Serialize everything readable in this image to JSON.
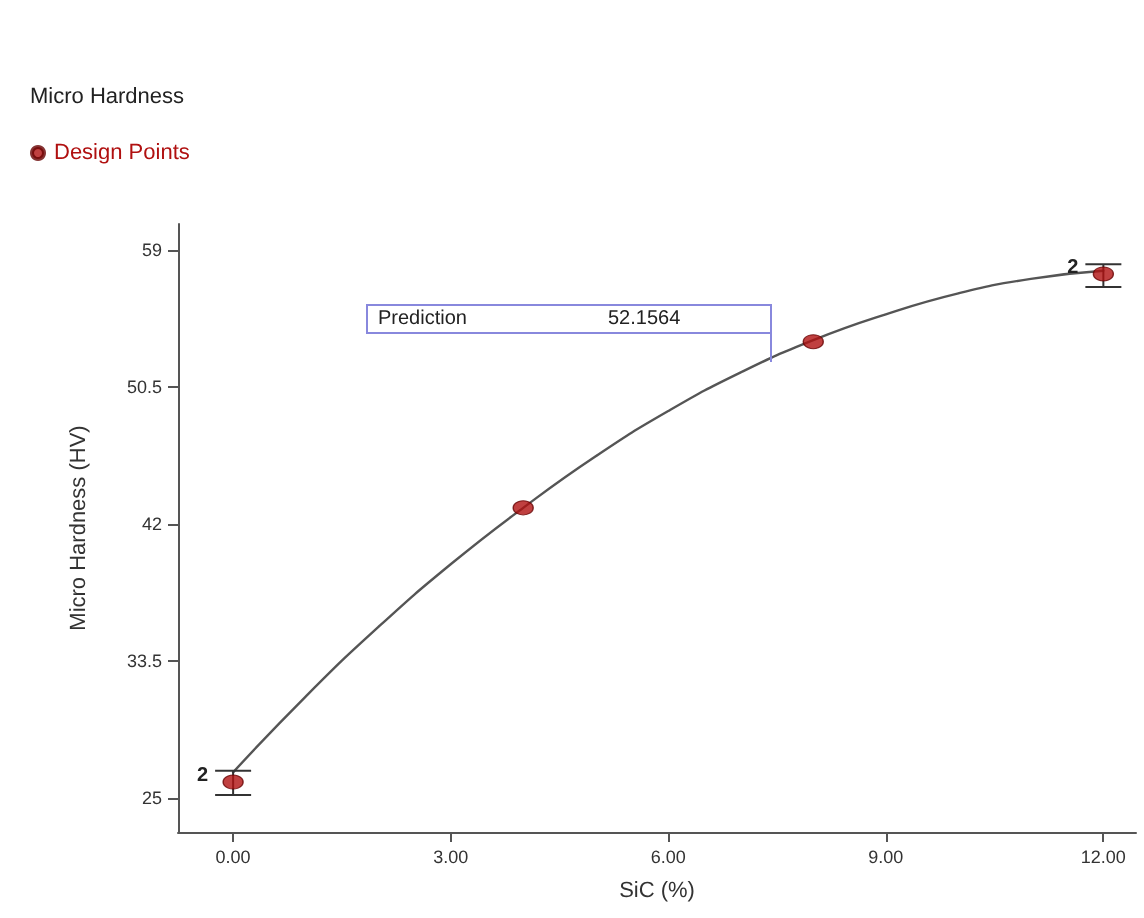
{
  "chart_data": {
    "type": "scatter",
    "title": "Micro Hardness",
    "xlabel": "SiC (%)",
    "ylabel": "Micro Hardness (HV)",
    "legend": "top left",
    "grid": false,
    "xlim": [
      -0.76,
      12.45
    ],
    "xticks": [
      {
        "value": 0,
        "label": "0.00"
      },
      {
        "value": 3,
        "label": "3.00"
      },
      {
        "value": 6,
        "label": "6.00"
      },
      {
        "value": 9,
        "label": "9.00"
      },
      {
        "value": 12,
        "label": "12.00"
      }
    ],
    "ylim": [
      22.9,
      60.6
    ],
    "yticks": [
      25,
      33.5,
      42,
      50.5,
      59
    ],
    "series": [
      {
        "type": "line",
        "color": "#555555",
        "marker": "none",
        "line_style": "solid",
        "x": [
          0,
          1,
          2,
          3,
          4,
          5,
          6,
          7,
          8,
          9,
          10,
          11,
          12
        ],
        "values": [
          26.6,
          31.3,
          35.6,
          39.5,
          43.0,
          46.2,
          49.0,
          51.4,
          53.4,
          55.0,
          56.3,
          57.2,
          57.7
        ]
      },
      {
        "name": "Design Points",
        "color": "#b01010",
        "marker": "circle",
        "x": [
          0,
          4,
          8,
          12
        ],
        "values": [
          26.0,
          43.0,
          53.3,
          57.5
        ],
        "errors": [
          [
            25.2,
            26.7
          ],
          null,
          null,
          [
            56.7,
            58.1
          ]
        ]
      }
    ],
    "annotations": [
      "Prediction",
      "52.1564",
      {
        "text": "2",
        "x": 0,
        "y": 26.0
      },
      {
        "text": "2",
        "x": 12,
        "y": 57.5
      }
    ]
  }
}
